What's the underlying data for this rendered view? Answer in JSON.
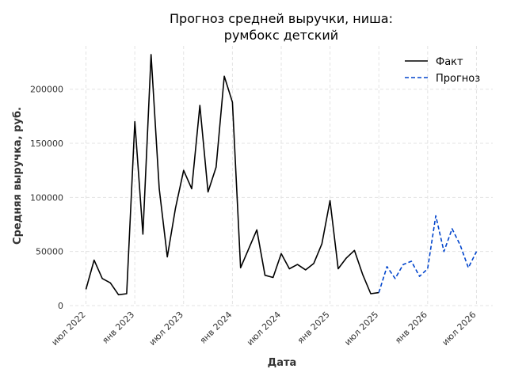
{
  "chart_data": {
    "type": "line",
    "title": [
      "Прогноз средней выручки, ниша:",
      "румбокс детский"
    ],
    "xlabel": "Дата",
    "ylabel": "Средняя выручка, руб.",
    "ylim": [
      0,
      240000
    ],
    "yticks": [
      0,
      50000,
      100000,
      150000,
      200000
    ],
    "ytick_labels": [
      "0",
      "50000",
      "100000",
      "150000",
      "200000"
    ],
    "xticks": [
      "2022-07",
      "2023-01",
      "2023-07",
      "2024-01",
      "2024-07",
      "2025-01",
      "2025-07",
      "2026-01",
      "2026-07"
    ],
    "xtick_labels": [
      "июл 2022",
      "янв 2023",
      "июл 2023",
      "янв 2024",
      "июл 2024",
      "янв 2025",
      "июл 2025",
      "янв 2026",
      "июл 2026"
    ],
    "x_range": [
      "2022-05",
      "2026-09"
    ],
    "grid": true,
    "legend_position": "top-right",
    "series": [
      {
        "name": "Факт",
        "color": "#000000",
        "style": "solid",
        "x": [
          "2022-07",
          "2022-08",
          "2022-09",
          "2022-10",
          "2022-11",
          "2022-12",
          "2023-01",
          "2023-02",
          "2023-03",
          "2023-04",
          "2023-05",
          "2023-06",
          "2023-07",
          "2023-08",
          "2023-09",
          "2023-10",
          "2023-11",
          "2023-12",
          "2024-01",
          "2024-02",
          "2024-04",
          "2024-05",
          "2024-06",
          "2024-07",
          "2024-08",
          "2024-09",
          "2024-10",
          "2024-11",
          "2024-12",
          "2025-01",
          "2025-02",
          "2025-03",
          "2025-04",
          "2025-05",
          "2025-06",
          "2025-07"
        ],
        "values": [
          15000,
          42000,
          25000,
          21000,
          10000,
          11000,
          170000,
          66000,
          232000,
          108000,
          45000,
          90000,
          125000,
          108000,
          185000,
          105000,
          128000,
          212000,
          188000,
          35000,
          70000,
          28000,
          26000,
          48000,
          34000,
          38000,
          33000,
          39000,
          57000,
          97000,
          34000,
          44000,
          51000,
          29000,
          11000,
          12000
        ]
      },
      {
        "name": "Прогноз",
        "color": "#0044cc",
        "style": "dashed",
        "x": [
          "2025-07",
          "2025-08",
          "2025-09",
          "2025-10",
          "2025-11",
          "2025-12",
          "2026-01",
          "2026-02",
          "2026-03",
          "2026-04",
          "2026-05",
          "2026-06",
          "2026-07"
        ],
        "values": [
          12000,
          36000,
          25000,
          38000,
          41000,
          27000,
          34000,
          83000,
          50000,
          71000,
          56000,
          35000,
          50000
        ]
      }
    ]
  }
}
